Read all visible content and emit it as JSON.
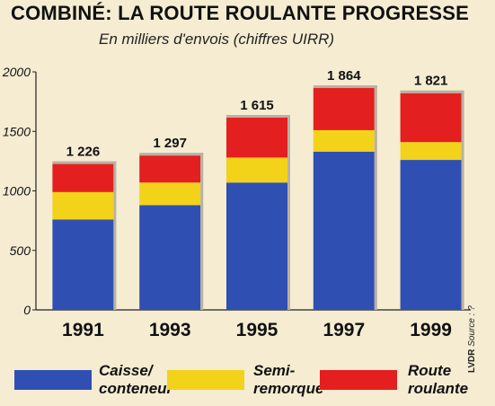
{
  "header": {
    "title": "COMBINÉ: LA ROUTE ROULANTE PROGRESSE",
    "subtitle": "En milliers d'envois (chiffres UIRR)"
  },
  "source": {
    "brand": "LVDR",
    "text": "Source : ?"
  },
  "legend": [
    {
      "label_line1": "Caisse/",
      "label_line2": "conteneur",
      "color": "#2f4fb3"
    },
    {
      "label_line1": "Semi-",
      "label_line2": "remorque",
      "color": "#f3d21a"
    },
    {
      "label_line1": "Route",
      "label_line2": "roulante",
      "color": "#e41f1f"
    }
  ],
  "chart_data": {
    "type": "bar",
    "stacked": true,
    "title": "COMBINÉ: LA ROUTE ROULANTE PROGRESSE",
    "subtitle": "En milliers d'envois (chiffres UIRR)",
    "categories": [
      "1991",
      "1993",
      "1995",
      "1997",
      "1999"
    ],
    "totals": [
      "1 226",
      "1 297",
      "1 615",
      "1 864",
      "1 821"
    ],
    "total_values": [
      1226,
      1297,
      1615,
      1864,
      1821
    ],
    "series": [
      {
        "name": "Caisse/conteneur",
        "color": "#2f4fb3",
        "values": [
          760,
          880,
          1070,
          1330,
          1260
        ]
      },
      {
        "name": "Semi-remorque",
        "color": "#f3d21a",
        "values": [
          230,
          190,
          210,
          180,
          150
        ]
      },
      {
        "name": "Route roulante",
        "color": "#e41f1f",
        "values": [
          236,
          227,
          335,
          354,
          411
        ]
      }
    ],
    "yticks": [
      0,
      500,
      1000,
      1500,
      2000
    ],
    "ytick_labels": [
      "0",
      "500",
      "1000",
      "1500",
      "2000"
    ],
    "ylim": [
      0,
      2000
    ],
    "grid": false,
    "legend_position": "bottom",
    "xlabel": "",
    "ylabel": ""
  }
}
